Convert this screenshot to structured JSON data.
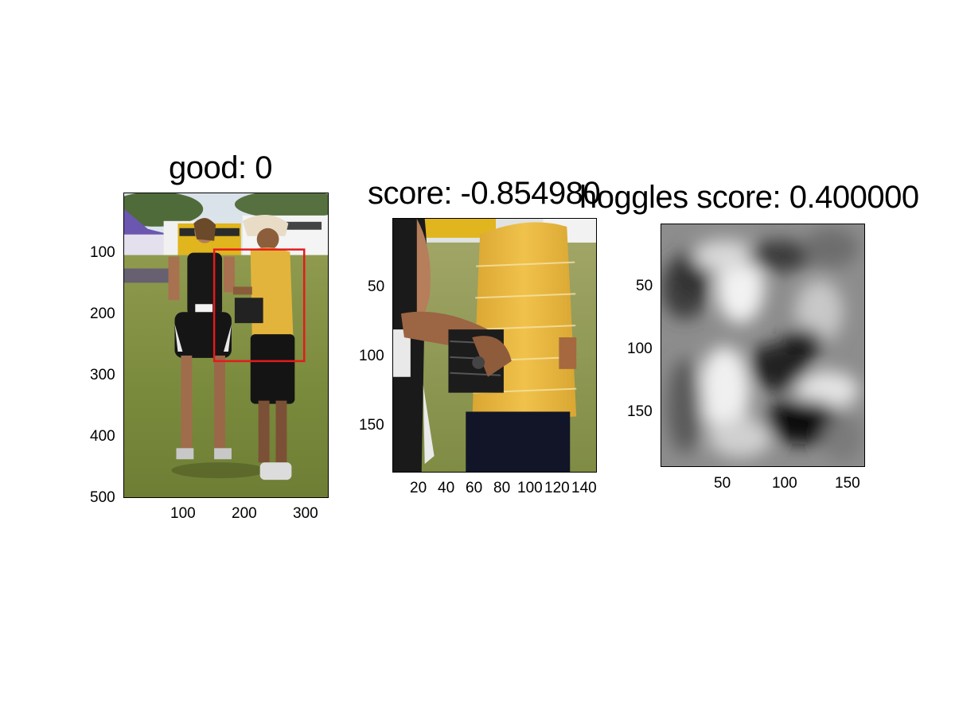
{
  "chart_data": [
    {
      "type": "image",
      "title": "good: 0",
      "x_ticks": [
        100,
        200,
        300
      ],
      "y_ticks": [
        100,
        200,
        300,
        400,
        500
      ],
      "xlim": [
        0,
        333
      ],
      "ylim": [
        0,
        500
      ],
      "image_content": "photo: girl in black running outfit with race bib and man in yellow striped polo and wide-brim hat on grass field, buses and purple tent behind",
      "bbox_annotation": {
        "color": "#e41a1c",
        "x1": 148,
        "y1": 92,
        "x2": 295,
        "y2": 275
      }
    },
    {
      "type": "image",
      "title": "score: -0.854980",
      "x_ticks": [
        20,
        40,
        60,
        80,
        100,
        120,
        140
      ],
      "x_tick_labels": [
        "20",
        "40",
        "60",
        "80",
        "100",
        "120",
        "140"
      ],
      "y_ticks": [
        50,
        100,
        150
      ],
      "xlim": [
        0,
        147
      ],
      "ylim": [
        0,
        183
      ],
      "image_content": "cropped photo: man in yellow polo holding a folder with black clips, girl's arm on left"
    },
    {
      "type": "heatmap",
      "title": "hoggles score: 0.400000",
      "x_ticks": [
        50,
        100,
        150
      ],
      "y_ticks": [
        50,
        100,
        150
      ],
      "xlim": [
        0,
        163
      ],
      "ylim": [
        0,
        195
      ],
      "colormap": "grayscale",
      "image_content": "blurry grayscale HOG inversion reconstruction"
    }
  ]
}
